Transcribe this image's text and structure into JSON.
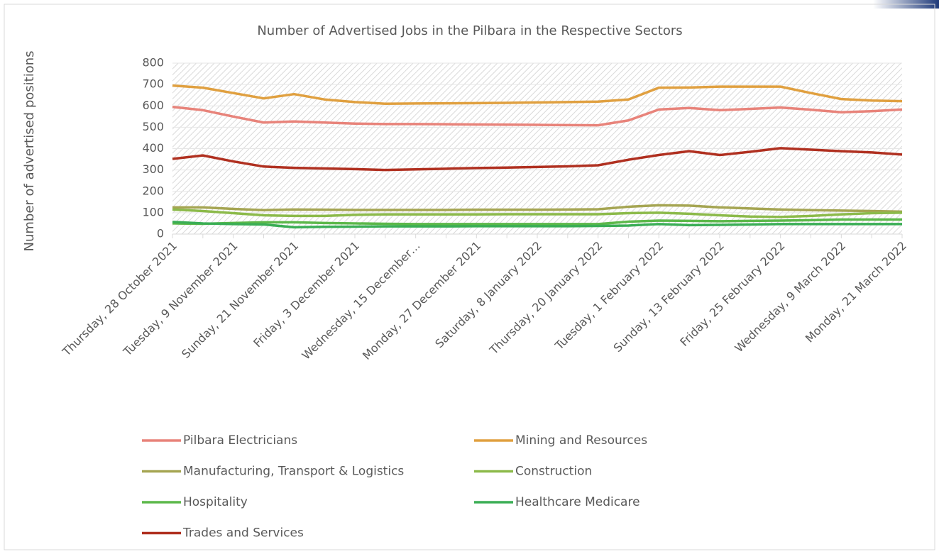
{
  "chart_data": {
    "type": "line",
    "title": "Number of Advertised Jobs in the Pilbara in the Respective Sectors",
    "y_label": "Number of advertised positions",
    "categories": [
      "Thursday, 28 October 2021",
      null,
      "Tuesday, 9 November 2021",
      null,
      "Sunday, 21 November 2021",
      null,
      "Friday, 3 December 2021",
      null,
      "Wednesday, 15 December…",
      null,
      "Monday, 27 December 2021",
      null,
      "Saturday, 8 January 2022",
      null,
      "Thursday, 20 January 2022",
      null,
      "Tuesday, 1 February 2022",
      null,
      "Sunday, 13 February 2022",
      null,
      "Friday, 25 February 2022",
      null,
      "Wednesday, 9 March 2022",
      null,
      "Monday, 21 March 2022"
    ],
    "ylim": [
      0,
      800
    ],
    "yticks": [
      0,
      100,
      200,
      300,
      400,
      500,
      600,
      700,
      800
    ],
    "grid": true,
    "series": [
      {
        "name": "Pilbara Electricians",
        "color": "#e8837a",
        "values": [
          595,
          580,
          550,
          522,
          527,
          522,
          517,
          515,
          515,
          514,
          513,
          512,
          511,
          510,
          509,
          532,
          583,
          590,
          580,
          586,
          592,
          582,
          570,
          575,
          583
        ]
      },
      {
        "name": "Mining and Resources",
        "color": "#e0a040",
        "values": [
          695,
          685,
          660,
          635,
          655,
          630,
          618,
          610,
          611,
          612,
          613,
          614,
          616,
          618,
          620,
          630,
          685,
          686,
          690,
          690,
          690,
          660,
          632,
          625,
          622
        ]
      },
      {
        "name": "Manufacturing, Transport & Logistics",
        "color": "#a5a552",
        "values": [
          125,
          125,
          118,
          112,
          115,
          114,
          113,
          113,
          113,
          113,
          114,
          114,
          114,
          115,
          116,
          128,
          135,
          133,
          125,
          120,
          115,
          112,
          110,
          108,
          105
        ]
      },
      {
        "name": "Construction",
        "color": "#8cba4a",
        "values": [
          115,
          108,
          98,
          88,
          85,
          85,
          90,
          92,
          92,
          92,
          92,
          93,
          93,
          93,
          93,
          98,
          100,
          95,
          88,
          82,
          80,
          85,
          92,
          98,
          100
        ]
      },
      {
        "name": "Hospitality",
        "color": "#5cb84a",
        "values": [
          50,
          48,
          52,
          55,
          55,
          52,
          50,
          48,
          47,
          47,
          47,
          47,
          47,
          47,
          47,
          58,
          63,
          62,
          60,
          62,
          63,
          65,
          68,
          68,
          68
        ]
      },
      {
        "name": "Healthcare Medicare",
        "color": "#3aae55",
        "values": [
          57,
          50,
          47,
          45,
          32,
          34,
          35,
          36,
          36,
          36,
          37,
          37,
          37,
          37,
          38,
          40,
          47,
          42,
          43,
          45,
          47,
          47,
          47,
          47,
          47
        ]
      },
      {
        "name": "Trades and Services",
        "color": "#b03020",
        "values": [
          352,
          368,
          340,
          316,
          310,
          307,
          304,
          300,
          303,
          306,
          309,
          311,
          314,
          317,
          322,
          348,
          370,
          388,
          370,
          385,
          402,
          395,
          388,
          382,
          372
        ]
      }
    ]
  }
}
